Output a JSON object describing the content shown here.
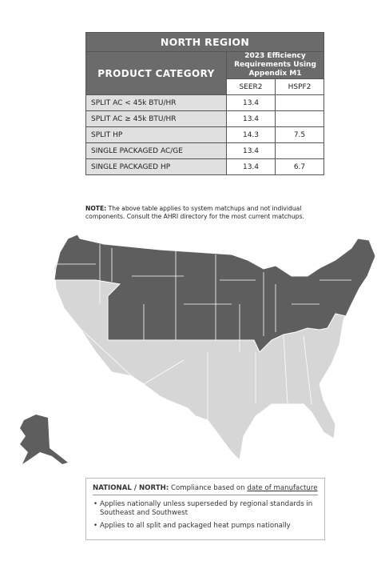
{
  "header": {
    "title": "NORTH REGION"
  },
  "table": {
    "header": {
      "category": "PRODUCT CATEGORY",
      "requirements": "2023 Efficiency Requirements Using Appendix M1"
    },
    "subheaders": [
      "SEER2",
      "HSPF2"
    ],
    "rows": [
      {
        "category": "SPLIT AC < 45k BTU/HR",
        "seer2": "13.4"
      },
      {
        "category": "SPLIT AC ≥ 45k BTU/HR",
        "seer2": "13.4"
      },
      {
        "category": "SPLIT HP",
        "seer2": "14.3",
        "hspf2": "7.5"
      },
      {
        "category": "SINGLE PACKAGED AC/GE",
        "seer2": "13.4"
      },
      {
        "category": "SINGLE PACKAGED HP",
        "seer2": "13.4",
        "hspf2": "6.7"
      }
    ]
  },
  "note": {
    "label": "NOTE:",
    "text": "The above table applies to system matchups and not individual components. Consult the AHRI directory for the most current matchups."
  },
  "info": {
    "label": "NATIONAL / NORTH:",
    "text": "Compliance based on",
    "underlined": "date of manufacture",
    "bullets": [
      "Applies nationally unless superseded by regional standards in Southeast and Southwest",
      "Applies to all split and packaged heat pumps nationally"
    ]
  }
}
